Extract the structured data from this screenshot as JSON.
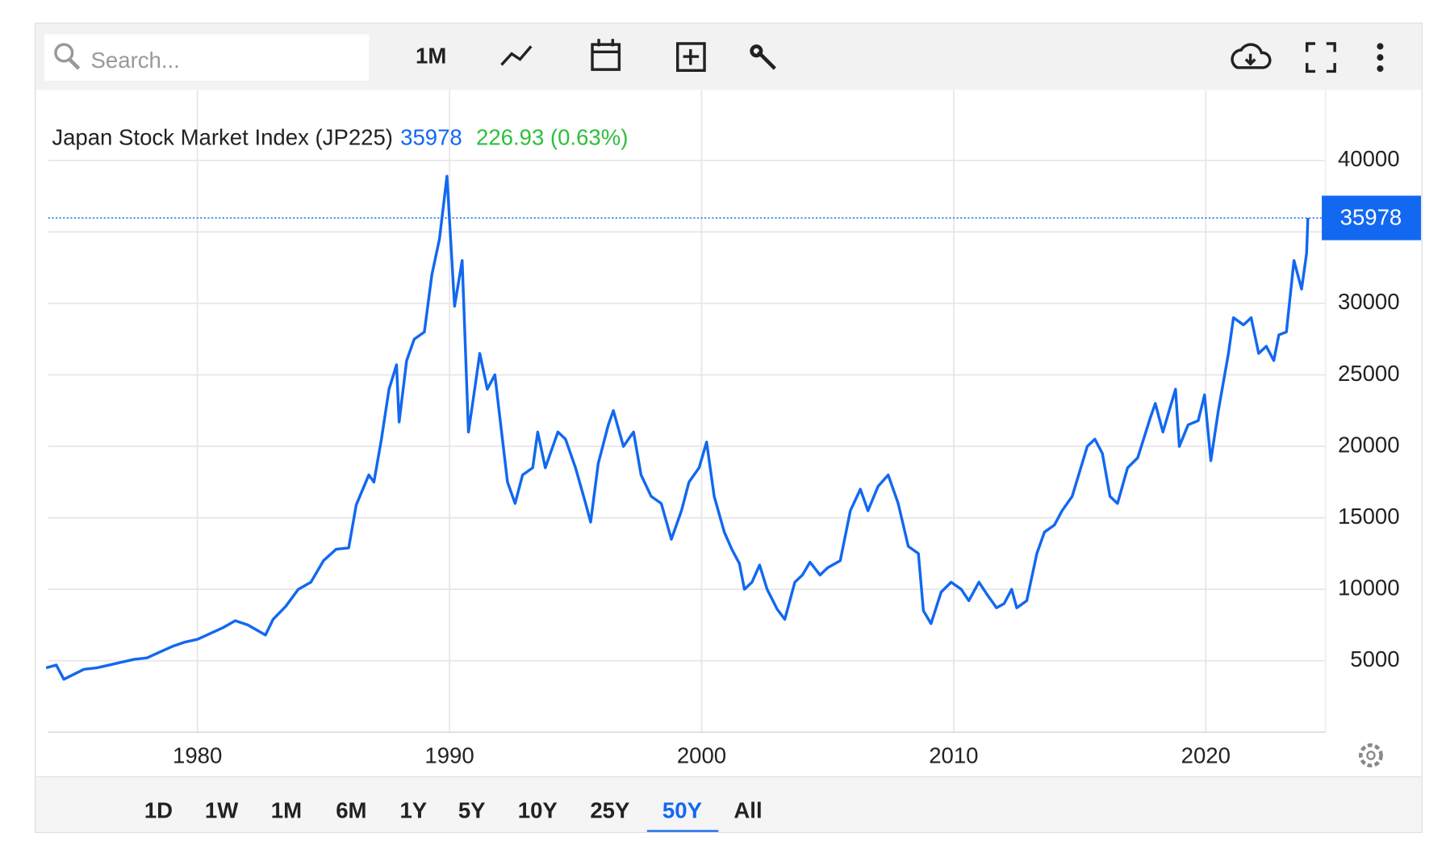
{
  "toolbar": {
    "search_placeholder": "Search...",
    "interval": "1M"
  },
  "range_buttons": [
    "1D",
    "1W",
    "1M",
    "6M",
    "1Y",
    "5Y",
    "10Y",
    "25Y",
    "50Y",
    "All"
  ],
  "active_range": 8,
  "chart_data": {
    "type": "line",
    "title": "Japan Stock Market Index (JP225)",
    "last_value": 35978,
    "change": "226.93 (0.63%)",
    "color": "#1268f0",
    "grid": true,
    "xlim": [
      1974.08,
      2024.75
    ],
    "ylim": [
      0,
      43800
    ],
    "xticks": [
      1980,
      1990,
      2000,
      2010,
      2020
    ],
    "yticks": [
      5000,
      10000,
      15000,
      20000,
      25000,
      30000,
      35000,
      40000
    ],
    "x": [
      1974.0,
      1974.4,
      1974.7,
      1975.5,
      1976,
      1976.5,
      1977,
      1977.5,
      1978,
      1978.5,
      1979,
      1979.5,
      1980,
      1980.5,
      1981,
      1981.5,
      1982,
      1982.7,
      1983,
      1983.5,
      1984,
      1984.5,
      1985,
      1985.5,
      1986,
      1986.3,
      1986.8,
      1987,
      1987.3,
      1987.6,
      1987.9,
      1988,
      1988.3,
      1988.6,
      1989,
      1989.3,
      1989.6,
      1989.9,
      1990.2,
      1990.5,
      1990.75,
      1991,
      1991.2,
      1991.5,
      1991.8,
      1992,
      1992.3,
      1992.6,
      1992.9,
      1993.3,
      1993.5,
      1993.8,
      1994,
      1994.3,
      1994.6,
      1995,
      1995.4,
      1995.6,
      1995.9,
      1996.3,
      1996.5,
      1996.9,
      1997.3,
      1997.6,
      1998,
      1998.4,
      1998.8,
      1999.2,
      1999.5,
      1999.9,
      2000.2,
      2000.5,
      2000.9,
      2001.2,
      2001.5,
      2001.7,
      2002,
      2002.3,
      2002.6,
      2003,
      2003.3,
      2003.7,
      2004,
      2004.3,
      2004.7,
      2005,
      2005.5,
      2005.9,
      2006.3,
      2006.6,
      2007,
      2007.4,
      2007.8,
      2008.2,
      2008.6,
      2008.8,
      2009.1,
      2009.5,
      2009.9,
      2010.3,
      2010.6,
      2011,
      2011.3,
      2011.7,
      2012,
      2012.3,
      2012.5,
      2012.9,
      2013.3,
      2013.6,
      2014,
      2014.3,
      2014.7,
      2015.3,
      2015.6,
      2015.9,
      2016.2,
      2016.5,
      2016.9,
      2017.3,
      2017.8,
      2018,
      2018.3,
      2018.8,
      2018.95,
      2019.3,
      2019.7,
      2019.95,
      2020.2,
      2020.5,
      2020.9,
      2021.1,
      2021.5,
      2021.8,
      2022.1,
      2022.4,
      2022.7,
      2022.9,
      2023.2,
      2023.5,
      2023.8,
      2024.0,
      2024.05
    ],
    "values": [
      4500,
      4700,
      3700,
      4400,
      4500,
      4700,
      4900,
      5100,
      5200,
      5600,
      6000,
      6300,
      6500,
      6900,
      7300,
      7800,
      7500,
      6800,
      7900,
      8800,
      10000,
      10500,
      12000,
      12800,
      12900,
      15900,
      18000,
      17500,
      20500,
      24000,
      25700,
      21700,
      26000,
      27500,
      28000,
      32000,
      34500,
      38900,
      29800,
      33000,
      21000,
      24000,
      26500,
      24000,
      25000,
      22000,
      17500,
      16000,
      18000,
      18500,
      21000,
      18500,
      19500,
      21000,
      20500,
      18500,
      16000,
      14700,
      18800,
      21500,
      22500,
      20000,
      21000,
      18000,
      16500,
      16000,
      13500,
      15500,
      17500,
      18500,
      20300,
      16500,
      14000,
      12800,
      11800,
      10000,
      10500,
      11700,
      10000,
      8600,
      7900,
      10500,
      11000,
      11900,
      11000,
      11500,
      12000,
      15500,
      17000,
      15500,
      17200,
      18000,
      16000,
      13000,
      12500,
      8500,
      7600,
      9800,
      10500,
      10000,
      9200,
      10500,
      9700,
      8700,
      9000,
      10000,
      8700,
      9200,
      12500,
      14000,
      14500,
      15500,
      16500,
      20000,
      20500,
      19500,
      16500,
      16000,
      18500,
      19200,
      22000,
      23000,
      21000,
      24000,
      20000,
      21500,
      21800,
      23600,
      19000,
      22500,
      26500,
      29000,
      28500,
      29000,
      26500,
      27000,
      26000,
      27800,
      28000,
      33000,
      31000,
      33500,
      35978
    ]
  }
}
